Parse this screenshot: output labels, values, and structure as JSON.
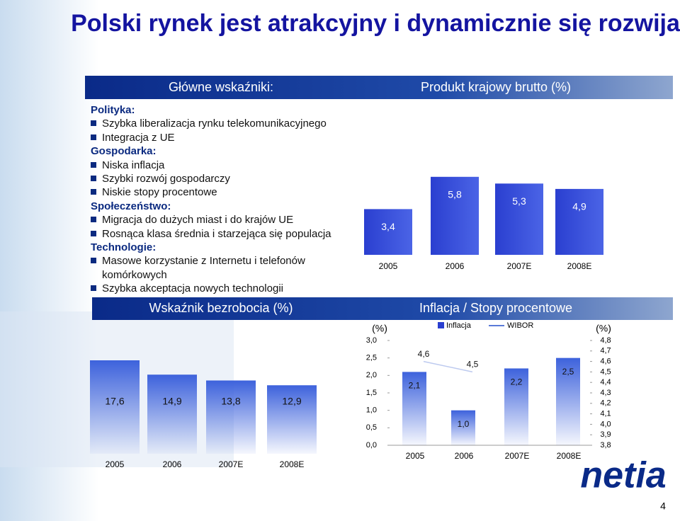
{
  "title": "Polski rynek jest atrakcyjny i dynamicznie się rozwija",
  "header_left": "Główne wskaźniki:",
  "sections": [
    {
      "heading": "Polityka:",
      "items": [
        "Szybka liberalizacja rynku telekomunikacyjnego",
        "Integracja z UE"
      ]
    },
    {
      "heading": "Gospodarka:",
      "items": [
        "Niska inflacja",
        "Szybki rozwój gospodarczy",
        "Niskie stopy procentowe"
      ]
    },
    {
      "heading": "Społeczeństwo:",
      "items": [
        "Migracja do dużych miast i do krajów UE",
        "Rosnąca klasa średnia i starzejąca się populacja"
      ]
    },
    {
      "heading": "Technologie:",
      "items": [
        "Masowe korzystanie z Internetu i telefonów komórkowych",
        "Szybka akceptacja nowych technologii"
      ]
    }
  ],
  "chart_data": [
    {
      "type": "bar",
      "title": "Produkt krajowy brutto (%)",
      "categories": [
        "2005",
        "2006",
        "2007E",
        "2008E"
      ],
      "values": [
        3.4,
        5.8,
        5.3,
        4.9
      ],
      "value_labels": [
        "3,4",
        "5,8",
        "5,3",
        "4,9"
      ],
      "color": "#2a3fd0"
    },
    {
      "type": "bar",
      "title": "Wskaźnik bezrobocia (%)",
      "categories": [
        "2005",
        "2006",
        "2007E",
        "2008E"
      ],
      "values": [
        17.6,
        14.9,
        13.8,
        12.9
      ],
      "value_labels": [
        "17,6",
        "14,9",
        "13,8",
        "12,9"
      ],
      "color": "#3d62dc"
    },
    {
      "type": "combo",
      "title": "Inflacja / Stopy procentowe",
      "categories": [
        "2005",
        "2006",
        "2007E",
        "2008E"
      ],
      "y_label": "(%)",
      "y2_label": "(%)",
      "ylim": [
        0,
        3
      ],
      "yticks": [
        {
          "value": 0,
          "label": "0,0"
        },
        {
          "value": 0.5,
          "label": "0,5"
        },
        {
          "value": 1,
          "label": "1,0"
        },
        {
          "value": 1.5,
          "label": "1,5"
        },
        {
          "value": 2,
          "label": "2,0"
        },
        {
          "value": 2.5,
          "label": "2,5"
        },
        {
          "value": 3,
          "label": "3,0"
        }
      ],
      "y2lim": [
        3.8,
        4.8
      ],
      "y2ticks": [
        {
          "value": 3.8,
          "label": "3,8"
        },
        {
          "value": 3.9,
          "label": "3,9"
        },
        {
          "value": 4,
          "label": "4,0"
        },
        {
          "value": 4.1,
          "label": "4,1"
        },
        {
          "value": 4.2,
          "label": "4,2"
        },
        {
          "value": 4.3,
          "label": "4,3"
        },
        {
          "value": 4.4,
          "label": "4,4"
        },
        {
          "value": 4.5,
          "label": "4,5"
        },
        {
          "value": 4.6,
          "label": "4,6"
        },
        {
          "value": 4.7,
          "label": "4,7"
        },
        {
          "value": 4.8,
          "label": "4,8"
        }
      ],
      "series": [
        {
          "name": "Inflacja",
          "type": "bar",
          "color": "#2a3fd0",
          "values": [
            2.1,
            1.0,
            2.2,
            2.5
          ],
          "value_labels": [
            "2,1",
            "1,0",
            "2,2",
            "2,5"
          ]
        },
        {
          "name": "WIBOR",
          "type": "line",
          "axis": "y2",
          "color": "#5a7ad8",
          "values": [
            4.6,
            4.5,
            null,
            null
          ],
          "value_labels": [
            "4,6",
            "4,5",
            null,
            null
          ]
        }
      ]
    }
  ],
  "logo": "netia",
  "page_number": "4"
}
